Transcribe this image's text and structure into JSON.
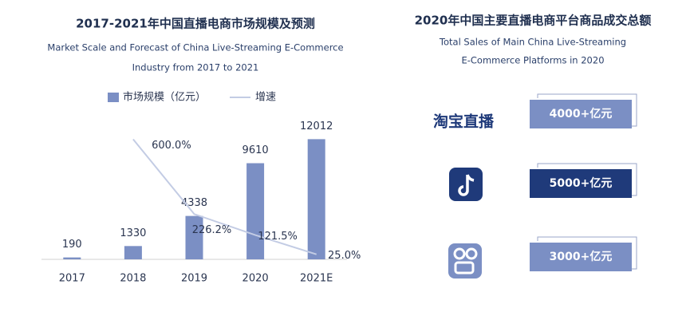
{
  "chart_data": {
    "type": "bar-line",
    "title": "2017-2021年中国直播电商市场规模及预测",
    "subtitle": [
      "Market Scale and Forecast of China Live-Streaming E-Commerce",
      "Industry from 2017 to 2021"
    ],
    "categories": [
      "2017",
      "2018",
      "2019",
      "2020",
      "2021E"
    ],
    "series": [
      {
        "name": "市场规模（亿元）",
        "type": "bar",
        "color": "#7b8fc4",
        "values": [
          190,
          1330,
          4338,
          9610,
          12012
        ]
      },
      {
        "name": "增速",
        "type": "line",
        "axis": "y2",
        "color": "#c3cce4",
        "values": [
          null,
          600.0,
          226.2,
          121.5,
          25.0
        ],
        "value_labels": [
          null,
          "600.0%",
          "226.2%",
          "121.5%",
          "25.0%"
        ]
      }
    ],
    "ylim": [
      0,
      13000
    ],
    "y2lim": [
      0,
      650
    ],
    "grid": false
  },
  "panel": {
    "title": "2020年中国主要直播电商平台商品成交总额",
    "subtitle": [
      "Total Sales of Main China Live-Streaming",
      "E-Commerce Platforms in 2020"
    ],
    "platforms": [
      {
        "logo": "淘宝直播",
        "total": "4000+亿元"
      },
      {
        "total": "5000+亿元"
      },
      {
        "total": "3000+亿元"
      }
    ]
  }
}
